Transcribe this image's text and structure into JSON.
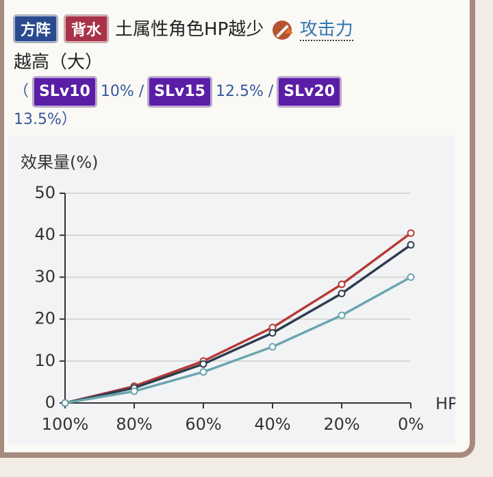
{
  "header": {
    "badges": [
      "方阵",
      "背水"
    ],
    "text": "土属性角色HP越少",
    "link": "攻击力",
    "text2": "越高（大）",
    "open": "（",
    "levels": [
      {
        "badge": "SLv10",
        "value": "10% /"
      },
      {
        "badge": "SLv15",
        "value": "12.5% /"
      },
      {
        "badge": "SLv20",
        "value": "13.5%"
      }
    ],
    "close": "）"
  },
  "chart_data": {
    "type": "line",
    "y_label": "效果量(%)",
    "x_label": "HP",
    "categories": [
      "100%",
      "80%",
      "60%",
      "40%",
      "20%",
      "0%"
    ],
    "series": [
      {
        "color": "#b53a36",
        "values": [
          0,
          4,
          10,
          18,
          28.3,
          40.5
        ]
      },
      {
        "color": "#2e3d4f",
        "values": [
          0,
          3.6,
          9.3,
          16.7,
          26.1,
          37.7
        ]
      },
      {
        "color": "#6ba5ae",
        "values": [
          0,
          2.8,
          7.4,
          13.4,
          20.9,
          30
        ]
      }
    ],
    "ylim": [
      0,
      50
    ],
    "yticks": [
      0,
      10,
      20,
      30,
      40,
      50
    ],
    "grid": true
  }
}
